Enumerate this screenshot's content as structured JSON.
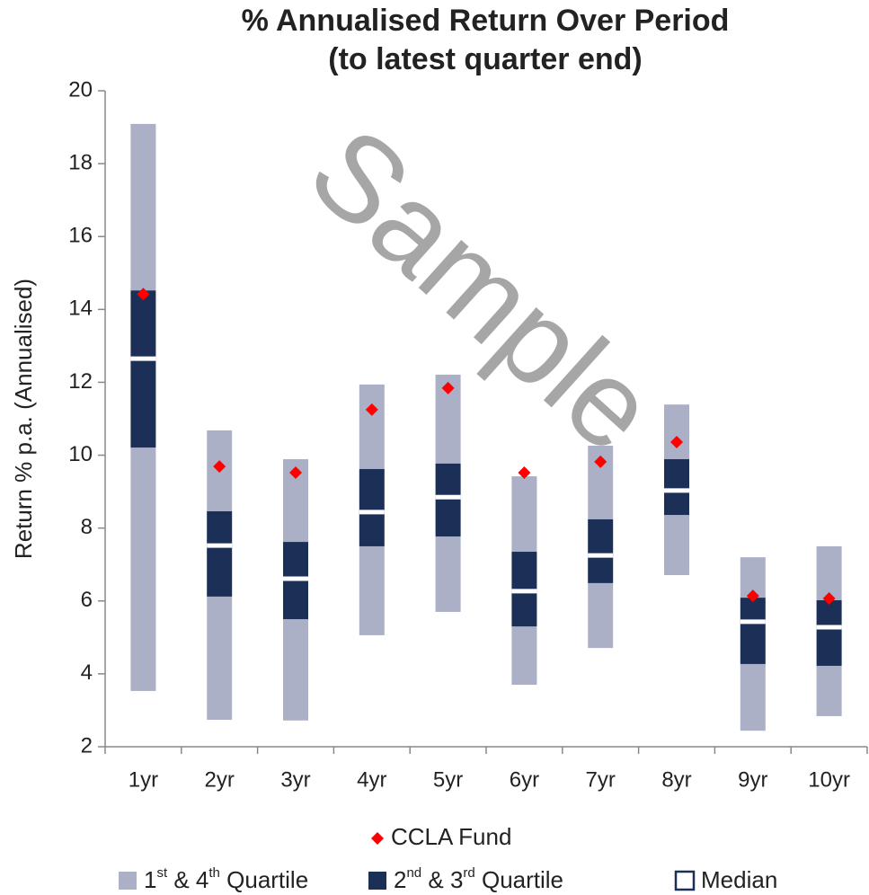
{
  "chart_data": {
    "type": "box",
    "title": [
      "% Annualised Return Over Period",
      "(to latest quarter end)"
    ],
    "ylabel": "Return % p.a. (Annualised)",
    "watermark": "Sample",
    "categories": [
      "1yr",
      "2yr",
      "3yr",
      "4yr",
      "5yr",
      "6yr",
      "7yr",
      "8yr",
      "9yr",
      "10yr"
    ],
    "ylim": [
      2,
      20
    ],
    "yticks": [
      2,
      4,
      6,
      8,
      10,
      12,
      14,
      16,
      18,
      20
    ],
    "outer": {
      "name": "1st & 4th Quartile",
      "color": "#abb0c6"
    },
    "inner": {
      "name": "2nd & 3rd Quartile",
      "color": "#1b2f57"
    },
    "median": {
      "name": "Median",
      "color": "#ffffff"
    },
    "box": {
      "min": [
        3.53,
        2.74,
        2.72,
        5.06,
        5.7,
        3.7,
        4.71,
        6.71,
        2.44,
        2.84
      ],
      "q1": [
        10.21,
        6.12,
        5.5,
        7.5,
        7.77,
        5.3,
        6.49,
        8.36,
        4.27,
        4.22
      ],
      "median": [
        12.65,
        7.52,
        6.61,
        8.44,
        8.85,
        6.27,
        7.25,
        9.03,
        5.43,
        5.28
      ],
      "q3": [
        14.52,
        8.46,
        7.62,
        9.62,
        9.77,
        7.35,
        8.24,
        9.89,
        6.09,
        6.02
      ],
      "max": [
        19.09,
        10.68,
        9.89,
        11.94,
        12.21,
        9.42,
        10.26,
        11.39,
        7.2,
        7.5
      ]
    },
    "fund": {
      "name": "CCLA Fund",
      "color": "#ff0000",
      "values": [
        14.42,
        9.69,
        9.52,
        11.25,
        11.84,
        9.52,
        9.82,
        10.36,
        6.14,
        6.07
      ]
    }
  }
}
